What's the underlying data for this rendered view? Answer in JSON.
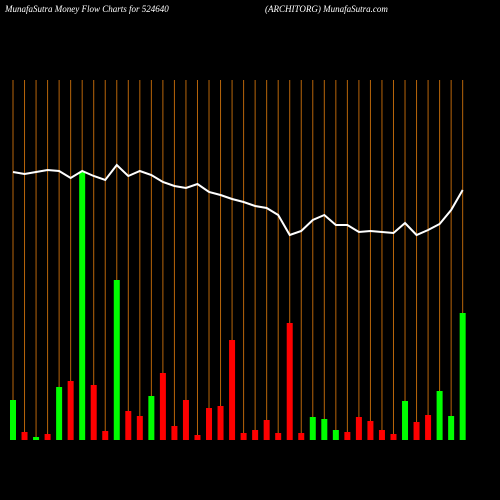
{
  "chart_data": {
    "type": "money-flow",
    "title": "MunafaSutra  Money Flow  Charts for 524640",
    "subtitle": "(ARCHITORG) MunafaSutra.com",
    "ylim": [
      0,
      380
    ],
    "grid_color": "#b8650a",
    "bar_values": [
      40,
      8,
      3,
      6,
      53,
      59,
      268,
      55,
      9,
      160,
      29,
      24,
      44,
      67,
      14,
      40,
      5,
      32,
      34,
      100,
      7,
      10,
      20,
      7,
      117,
      7,
      23,
      21,
      10,
      8,
      23,
      19,
      10,
      6,
      39,
      18,
      25,
      49,
      24,
      127
    ],
    "bar_colors": [
      "#00ff00",
      "#ff0000",
      "#00ff00",
      "#ff0000",
      "#00ff00",
      "#ff0000",
      "#00ff00",
      "#ff0000",
      "#ff0000",
      "#00ff00",
      "#ff0000",
      "#ff0000",
      "#00ff00",
      "#ff0000",
      "#ff0000",
      "#ff0000",
      "#ff0000",
      "#ff0000",
      "#ff0000",
      "#ff0000",
      "#ff0000",
      "#ff0000",
      "#ff0000",
      "#ff0000",
      "#ff0000",
      "#ff0000",
      "#00ff00",
      "#00ff00",
      "#00ff00",
      "#ff0000",
      "#ff0000",
      "#ff0000",
      "#ff0000",
      "#ff0000",
      "#00ff00",
      "#ff0000",
      "#ff0000",
      "#00ff00",
      "#00ff00",
      "#00ff00"
    ],
    "line_values": [
      268,
      266,
      268,
      270,
      269,
      262,
      269,
      264,
      260,
      275,
      264,
      269,
      265,
      258,
      254,
      252,
      256,
      248,
      245,
      241,
      238,
      234,
      232,
      225,
      205,
      209,
      220,
      225,
      215,
      215,
      208,
      209,
      208,
      207,
      217,
      205,
      210,
      216,
      230,
      250
    ],
    "line_color": "#ffffff"
  }
}
